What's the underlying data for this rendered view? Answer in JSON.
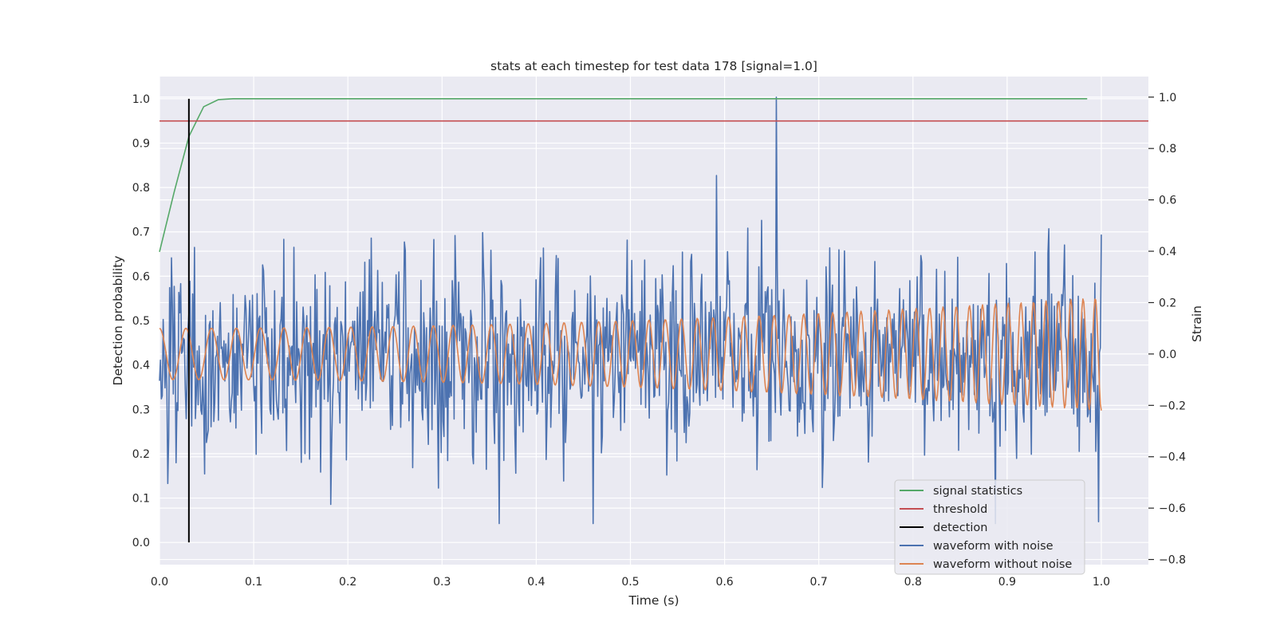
{
  "chart_data": {
    "type": "line",
    "title": "stats at each timestep for test data 178 [signal=1.0]",
    "xlabel": "Time (s)",
    "ylabel_left": "Detection probability",
    "ylabel_right": "Strain",
    "xlim": [
      0.0,
      1.05
    ],
    "ylim_left": [
      -0.05,
      1.05
    ],
    "ylim_right": [
      -0.82,
      1.08
    ],
    "x_ticks": [
      0.0,
      0.1,
      0.2,
      0.3,
      0.4,
      0.5,
      0.6,
      0.7,
      0.8,
      0.9,
      1.0
    ],
    "x_tick_labels": [
      "0.0",
      "0.1",
      "0.2",
      "0.3",
      "0.4",
      "0.5",
      "0.6",
      "0.7",
      "0.8",
      "0.9",
      "1.0"
    ],
    "y_left_ticks": [
      0.0,
      0.1,
      0.2,
      0.3,
      0.4,
      0.5,
      0.6,
      0.7,
      0.8,
      0.9,
      1.0
    ],
    "y_left_tick_labels": [
      "0.0",
      "0.1",
      "0.2",
      "0.3",
      "0.4",
      "0.5",
      "0.6",
      "0.7",
      "0.8",
      "0.9",
      "1.0"
    ],
    "y_right_ticks": [
      -0.8,
      -0.6,
      -0.4,
      -0.2,
      0.0,
      0.2,
      0.4,
      0.6,
      0.8,
      1.0
    ],
    "y_right_tick_labels": [
      "−0.8",
      "−0.6",
      "−0.4",
      "−0.2",
      "0.0",
      "0.2",
      "0.4",
      "0.6",
      "0.8",
      "1.0"
    ],
    "grid": true,
    "legend_position": "lower-right",
    "series": [
      {
        "name": "signal statistics",
        "axis": "left",
        "color": "#55a868",
        "x": [
          0.0,
          0.0156,
          0.0312,
          0.0469,
          0.0625,
          0.0781,
          0.1,
          0.2,
          0.3,
          0.4,
          0.5,
          0.6,
          0.7,
          0.8,
          0.9,
          0.985
        ],
        "y": [
          0.655,
          0.79,
          0.915,
          0.982,
          0.998,
          1.0,
          1.0,
          1.0,
          1.0,
          1.0,
          1.0,
          1.0,
          1.0,
          1.0,
          1.0,
          1.0
        ]
      },
      {
        "name": "threshold",
        "axis": "left",
        "color": "#c44e52",
        "x": [
          0.0,
          1.05
        ],
        "y": [
          0.95,
          0.95
        ]
      },
      {
        "name": "detection",
        "axis": "left",
        "color": "#000000",
        "x": [
          0.0312,
          0.0312
        ],
        "y": [
          0.0,
          1.0
        ]
      },
      {
        "name": "waveform with noise",
        "axis": "right",
        "color": "#4c72b0",
        "x_range": [
          0.0,
          1.0
        ],
        "n_points": 1024,
        "amplitude_std": 0.2,
        "min": -0.66,
        "max": 1.0,
        "peak_x": 0.655,
        "peak_y": 1.0
      },
      {
        "name": "waveform without noise",
        "axis": "right",
        "color": "#dd8452",
        "x_range": [
          0.0,
          1.0
        ],
        "n_points": 1024,
        "amplitude_start": 0.1,
        "amplitude_end": 0.22,
        "cycles_start_hz": 35,
        "cycles_end_hz": 78
      }
    ],
    "legend": [
      "signal statistics",
      "threshold",
      "detection",
      "waveform with noise",
      "waveform without noise"
    ]
  }
}
